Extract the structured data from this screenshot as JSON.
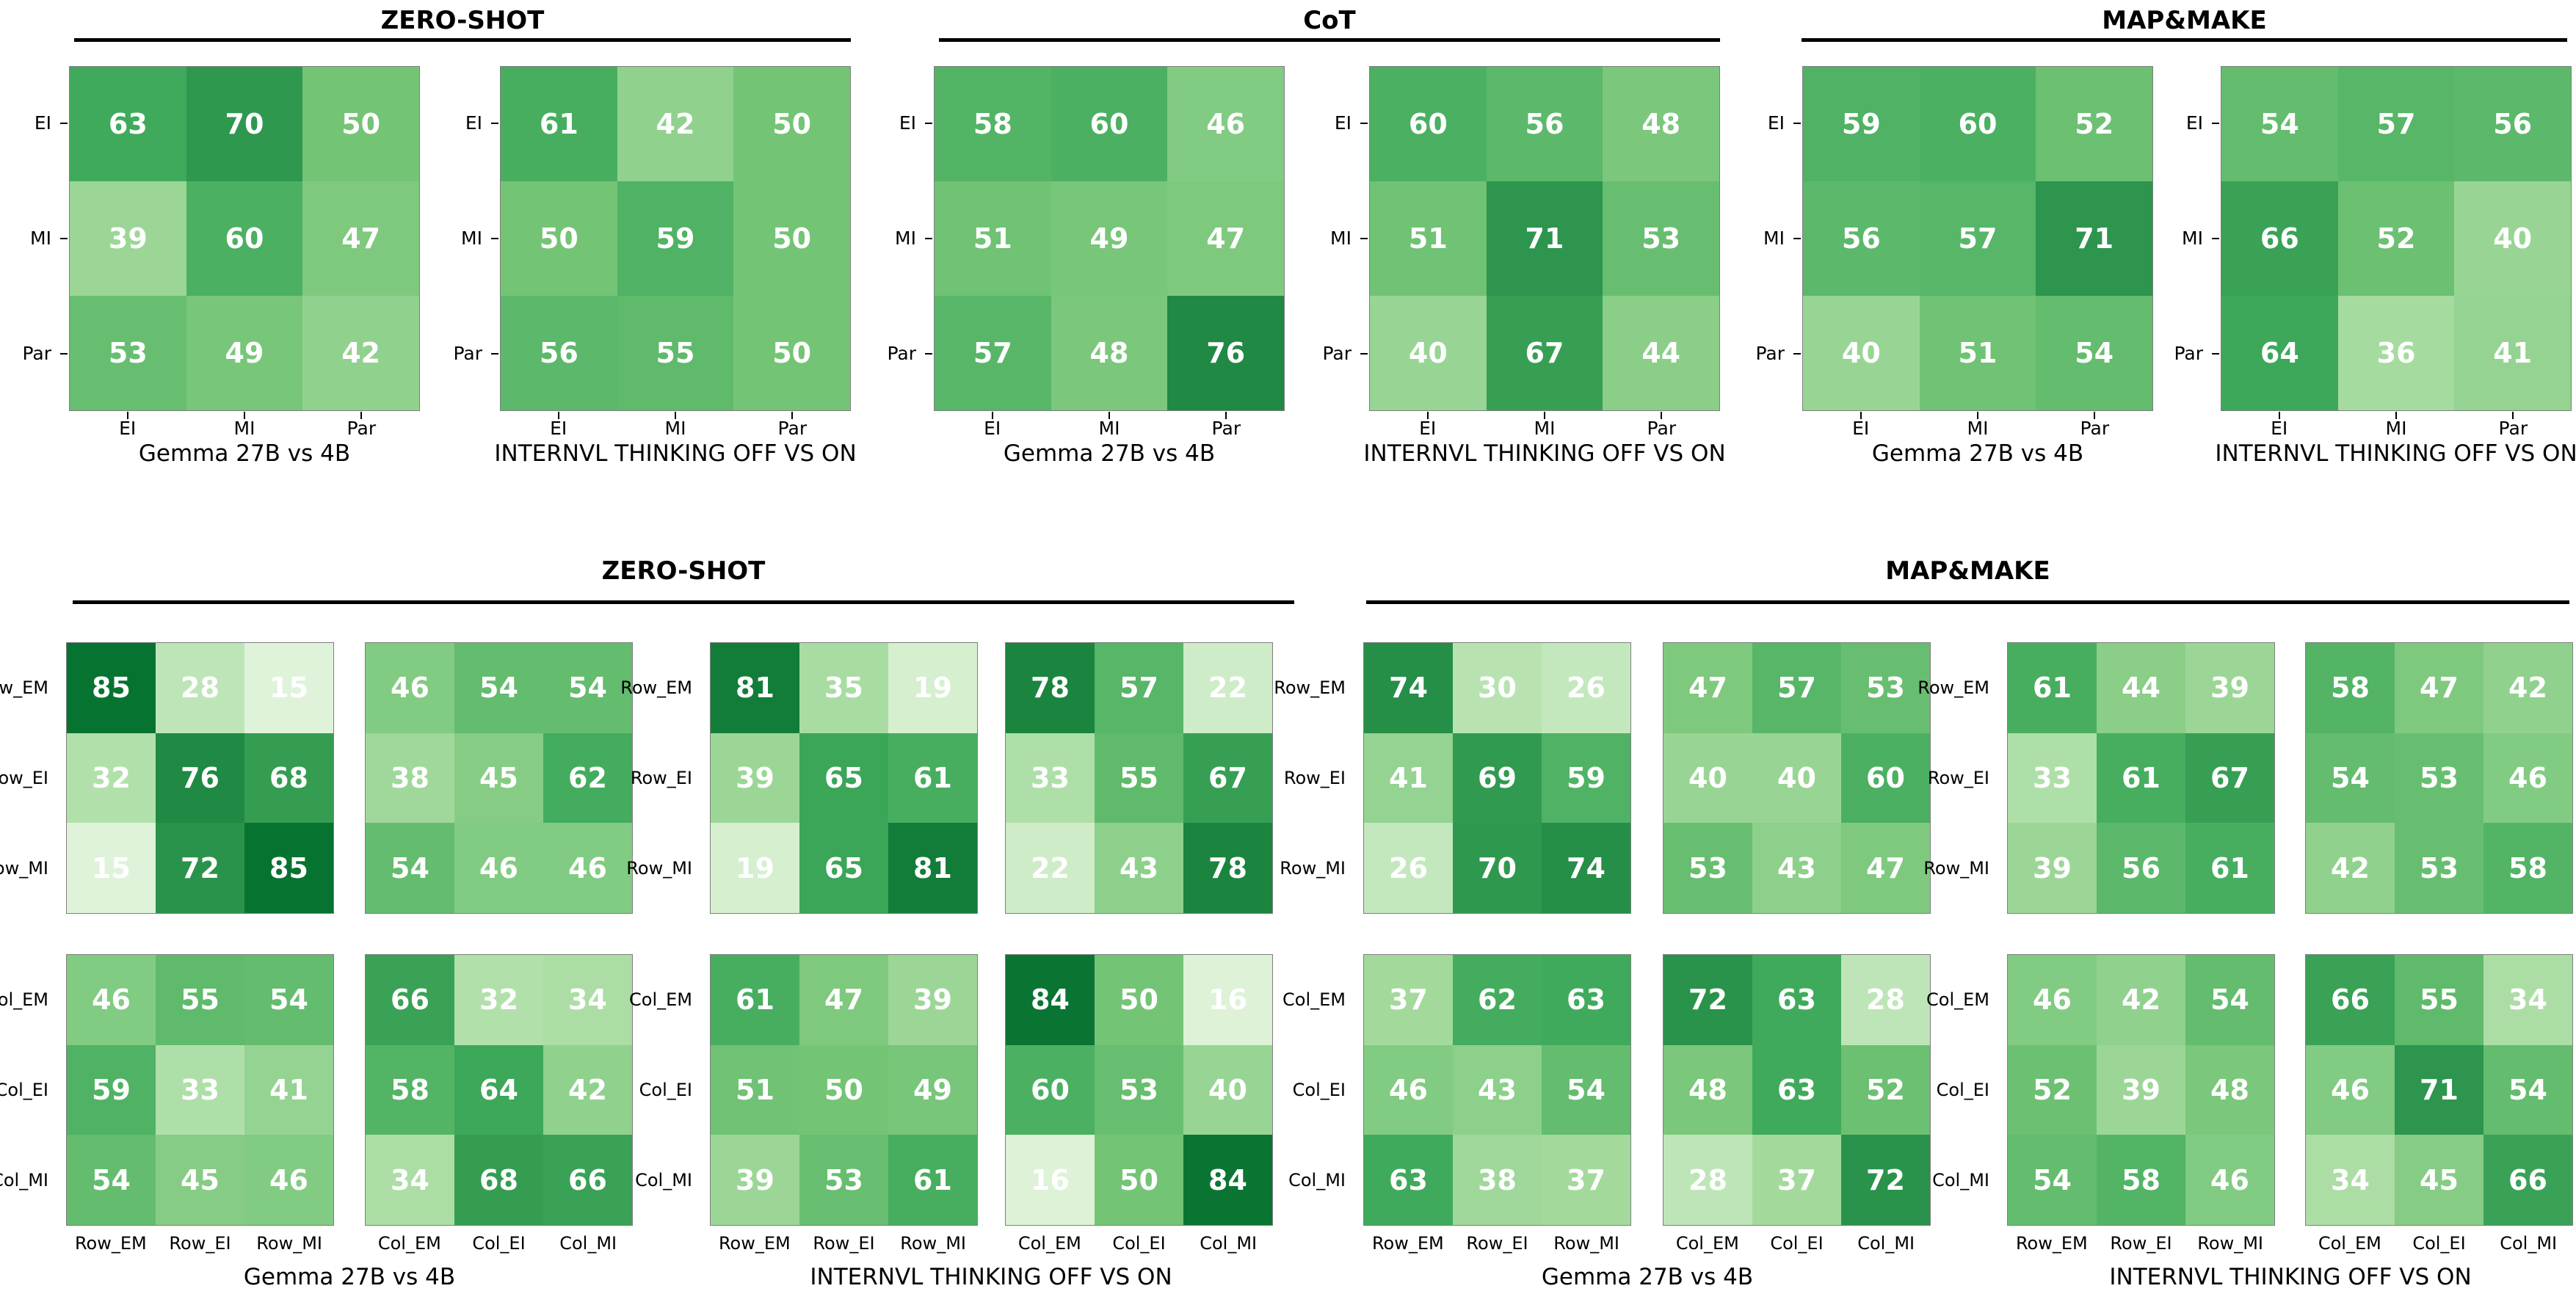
{
  "figure_title": "",
  "chart_data": {
    "type": "heatmap",
    "vmin": 0,
    "vmax": 100,
    "grid": false,
    "cell_text_color": "#ffffff",
    "colormap": {
      "name": "Greens",
      "stops": [
        [
          0.0,
          "#f7fcf5"
        ],
        [
          0.125,
          "#e5f5e0"
        ],
        [
          0.25,
          "#c7e9c0"
        ],
        [
          0.375,
          "#a1d99b"
        ],
        [
          0.5,
          "#74c476"
        ],
        [
          0.625,
          "#41ab5d"
        ],
        [
          0.75,
          "#238b45"
        ],
        [
          0.875,
          "#006d2c"
        ],
        [
          1.0,
          "#00441b"
        ]
      ]
    },
    "top_groups": [
      {
        "title": "ZERO-SHOT",
        "panels": [
          {
            "caption": "Gemma 27B vs 4B",
            "y_labels": [
              "EI",
              "MI",
              "Par"
            ],
            "x_labels": [
              "EI",
              "MI",
              "Par"
            ],
            "values": [
              [
                63,
                70,
                50
              ],
              [
                39,
                60,
                47
              ],
              [
                53,
                49,
                42
              ]
            ]
          },
          {
            "caption": "INTERNVL THINKING OFF VS ON",
            "y_labels": [
              "EI",
              "MI",
              "Par"
            ],
            "x_labels": [
              "EI",
              "MI",
              "Par"
            ],
            "values": [
              [
                61,
                42,
                50
              ],
              [
                50,
                59,
                50
              ],
              [
                56,
                55,
                50
              ]
            ]
          }
        ]
      },
      {
        "title": "CoT",
        "panels": [
          {
            "caption": "Gemma 27B vs 4B",
            "y_labels": [
              "EI",
              "MI",
              "Par"
            ],
            "x_labels": [
              "EI",
              "MI",
              "Par"
            ],
            "values": [
              [
                58,
                60,
                46
              ],
              [
                51,
                49,
                47
              ],
              [
                57,
                48,
                76
              ]
            ]
          },
          {
            "caption": "INTERNVL THINKING OFF VS ON",
            "y_labels": [
              "EI",
              "MI",
              "Par"
            ],
            "x_labels": [
              "EI",
              "MI",
              "Par"
            ],
            "values": [
              [
                60,
                56,
                48
              ],
              [
                51,
                71,
                53
              ],
              [
                40,
                67,
                44
              ]
            ]
          }
        ]
      },
      {
        "title": "MAP&MAKE",
        "panels": [
          {
            "caption": "Gemma 27B vs 4B",
            "y_labels": [
              "EI",
              "MI",
              "Par"
            ],
            "x_labels": [
              "EI",
              "MI",
              "Par"
            ],
            "values": [
              [
                59,
                60,
                52
              ],
              [
                56,
                57,
                71
              ],
              [
                40,
                51,
                54
              ]
            ]
          },
          {
            "caption": "INTERNVL THINKING OFF VS ON",
            "y_labels": [
              "EI",
              "MI",
              "Par"
            ],
            "x_labels": [
              "EI",
              "MI",
              "Par"
            ],
            "values": [
              [
                54,
                57,
                56
              ],
              [
                66,
                52,
                40
              ],
              [
                64,
                36,
                41
              ]
            ]
          }
        ]
      }
    ],
    "bottom_groups": [
      {
        "title": "ZERO-SHOT",
        "blocks": [
          {
            "caption": "Gemma 27B vs 4B",
            "panels": [
              {
                "show_y": true,
                "show_x": false,
                "y_labels": [
                  "Row_EM",
                  "Row_EI",
                  "Row_MI"
                ],
                "x_labels": [
                  "Row_EM",
                  "Row_EI",
                  "Row_MI"
                ],
                "values": [
                  [
                    85,
                    28,
                    15
                  ],
                  [
                    32,
                    76,
                    68
                  ],
                  [
                    15,
                    72,
                    85
                  ]
                ]
              },
              {
                "show_y": false,
                "show_x": false,
                "y_labels": [
                  "Row_EM",
                  "Row_EI",
                  "Row_MI"
                ],
                "x_labels": [
                  "Col_EM",
                  "Col_EI",
                  "Col_MI"
                ],
                "values": [
                  [
                    46,
                    54,
                    54
                  ],
                  [
                    38,
                    45,
                    62
                  ],
                  [
                    54,
                    46,
                    46
                  ]
                ]
              },
              {
                "show_y": true,
                "show_x": true,
                "y_labels": [
                  "Col_EM",
                  "Col_EI",
                  "Col_MI"
                ],
                "x_labels": [
                  "Row_EM",
                  "Row_EI",
                  "Row_MI"
                ],
                "values": [
                  [
                    46,
                    55,
                    54
                  ],
                  [
                    59,
                    33,
                    41
                  ],
                  [
                    54,
                    45,
                    46
                  ]
                ]
              },
              {
                "show_y": false,
                "show_x": true,
                "y_labels": [
                  "Col_EM",
                  "Col_EI",
                  "Col_MI"
                ],
                "x_labels": [
                  "Col_EM",
                  "Col_EI",
                  "Col_MI"
                ],
                "values": [
                  [
                    66,
                    32,
                    34
                  ],
                  [
                    58,
                    64,
                    42
                  ],
                  [
                    34,
                    68,
                    66
                  ]
                ]
              }
            ]
          },
          {
            "caption": "INTERNVL THINKING OFF VS ON",
            "panels": [
              {
                "show_y": true,
                "show_x": false,
                "y_labels": [
                  "Row_EM",
                  "Row_EI",
                  "Row_MI"
                ],
                "x_labels": [
                  "Row_EM",
                  "Row_EI",
                  "Row_MI"
                ],
                "values": [
                  [
                    81,
                    35,
                    19
                  ],
                  [
                    39,
                    65,
                    61
                  ],
                  [
                    19,
                    65,
                    81
                  ]
                ]
              },
              {
                "show_y": false,
                "show_x": false,
                "y_labels": [
                  "Row_EM",
                  "Row_EI",
                  "Row_MI"
                ],
                "x_labels": [
                  "Col_EM",
                  "Col_EI",
                  "Col_MI"
                ],
                "values": [
                  [
                    78,
                    57,
                    22
                  ],
                  [
                    33,
                    55,
                    67
                  ],
                  [
                    22,
                    43,
                    78
                  ]
                ]
              },
              {
                "show_y": true,
                "show_x": true,
                "y_labels": [
                  "Col_EM",
                  "Col_EI",
                  "Col_MI"
                ],
                "x_labels": [
                  "Row_EM",
                  "Row_EI",
                  "Row_MI"
                ],
                "values": [
                  [
                    61,
                    47,
                    39
                  ],
                  [
                    51,
                    50,
                    49
                  ],
                  [
                    39,
                    53,
                    61
                  ]
                ]
              },
              {
                "show_y": false,
                "show_x": true,
                "y_labels": [
                  "Col_EM",
                  "Col_EI",
                  "Col_MI"
                ],
                "x_labels": [
                  "Col_EM",
                  "Col_EI",
                  "Col_MI"
                ],
                "values": [
                  [
                    84,
                    50,
                    16
                  ],
                  [
                    60,
                    53,
                    40
                  ],
                  [
                    16,
                    50,
                    84
                  ]
                ]
              }
            ]
          }
        ]
      },
      {
        "title": "MAP&MAKE",
        "blocks": [
          {
            "caption": "Gemma 27B vs 4B",
            "panels": [
              {
                "show_y": true,
                "show_x": false,
                "y_labels": [
                  "Row_EM",
                  "Row_EI",
                  "Row_MI"
                ],
                "x_labels": [
                  "Row_EM",
                  "Row_EI",
                  "Row_MI"
                ],
                "values": [
                  [
                    74,
                    30,
                    26
                  ],
                  [
                    41,
                    69,
                    59
                  ],
                  [
                    26,
                    70,
                    74
                  ]
                ]
              },
              {
                "show_y": false,
                "show_x": false,
                "y_labels": [
                  "Row_EM",
                  "Row_EI",
                  "Row_MI"
                ],
                "x_labels": [
                  "Col_EM",
                  "Col_EI",
                  "Col_MI"
                ],
                "values": [
                  [
                    47,
                    57,
                    53
                  ],
                  [
                    40,
                    40,
                    60
                  ],
                  [
                    53,
                    43,
                    47
                  ]
                ]
              },
              {
                "show_y": true,
                "show_x": true,
                "y_labels": [
                  "Col_EM",
                  "Col_EI",
                  "Col_MI"
                ],
                "x_labels": [
                  "Row_EM",
                  "Row_EI",
                  "Row_MI"
                ],
                "values": [
                  [
                    37,
                    62,
                    63
                  ],
                  [
                    46,
                    43,
                    54
                  ],
                  [
                    63,
                    38,
                    37
                  ]
                ]
              },
              {
                "show_y": false,
                "show_x": true,
                "y_labels": [
                  "Col_EM",
                  "Col_EI",
                  "Col_MI"
                ],
                "x_labels": [
                  "Col_EM",
                  "Col_EI",
                  "Col_MI"
                ],
                "values": [
                  [
                    72,
                    63,
                    28
                  ],
                  [
                    48,
                    63,
                    52
                  ],
                  [
                    28,
                    37,
                    72
                  ]
                ]
              }
            ]
          },
          {
            "caption": "INTERNVL THINKING OFF VS ON",
            "panels": [
              {
                "show_y": true,
                "show_x": false,
                "y_labels": [
                  "Row_EM",
                  "Row_EI",
                  "Row_MI"
                ],
                "x_labels": [
                  "Row_EM",
                  "Row_EI",
                  "Row_MI"
                ],
                "values": [
                  [
                    61,
                    44,
                    39
                  ],
                  [
                    33,
                    61,
                    67
                  ],
                  [
                    39,
                    56,
                    61
                  ]
                ]
              },
              {
                "show_y": false,
                "show_x": false,
                "y_labels": [
                  "Row_EM",
                  "Row_EI",
                  "Row_MI"
                ],
                "x_labels": [
                  "Col_EM",
                  "Col_EI",
                  "Col_MI"
                ],
                "values": [
                  [
                    58,
                    47,
                    42
                  ],
                  [
                    54,
                    53,
                    46
                  ],
                  [
                    42,
                    53,
                    58
                  ]
                ]
              },
              {
                "show_y": true,
                "show_x": true,
                "y_labels": [
                  "Col_EM",
                  "Col_EI",
                  "Col_MI"
                ],
                "x_labels": [
                  "Row_EM",
                  "Row_EI",
                  "Row_MI"
                ],
                "values": [
                  [
                    46,
                    42,
                    54
                  ],
                  [
                    52,
                    39,
                    48
                  ],
                  [
                    54,
                    58,
                    46
                  ]
                ]
              },
              {
                "show_y": false,
                "show_x": true,
                "y_labels": [
                  "Col_EM",
                  "Col_EI",
                  "Col_MI"
                ],
                "x_labels": [
                  "Col_EM",
                  "Col_EI",
                  "Col_MI"
                ],
                "values": [
                  [
                    66,
                    55,
                    34
                  ],
                  [
                    46,
                    71,
                    54
                  ],
                  [
                    34,
                    45,
                    66
                  ]
                ]
              }
            ]
          }
        ]
      }
    ]
  }
}
